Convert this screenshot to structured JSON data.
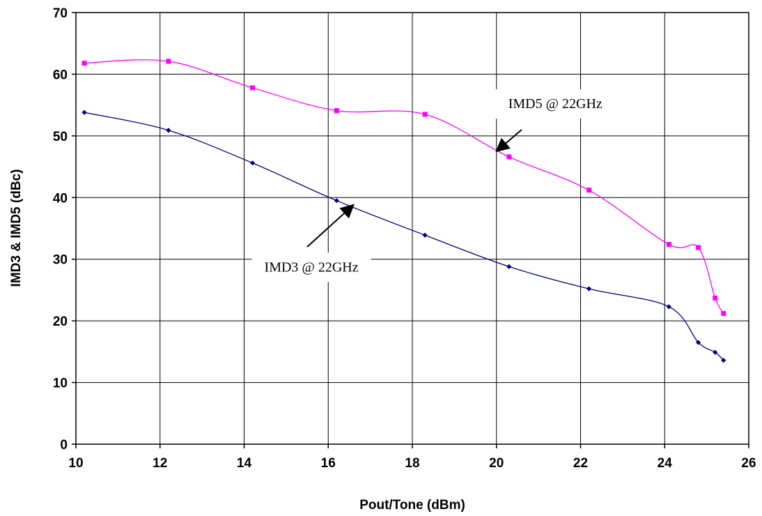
{
  "chart_data": {
    "type": "line",
    "xlabel": "Pout/Tone (dBm)",
    "ylabel": "IMD3 & IMD5 (dBc)",
    "xlim": [
      10,
      26
    ],
    "ylim": [
      0,
      70
    ],
    "x_ticks": [
      "10",
      "12",
      "14",
      "16",
      "18",
      "20",
      "22",
      "24",
      "26"
    ],
    "y_ticks": [
      "0",
      "10",
      "20",
      "30",
      "40",
      "50",
      "60",
      "70"
    ],
    "grid": true,
    "series": [
      {
        "key": "imd5",
        "color": "#ff00ff",
        "marker": "square",
        "points": [
          [
            10.2,
            61.8
          ],
          [
            12.2,
            62.1
          ],
          [
            14.2,
            57.8
          ],
          [
            16.2,
            54.1
          ],
          [
            18.3,
            53.5
          ],
          [
            20.3,
            46.6
          ],
          [
            22.2,
            41.2
          ],
          [
            24.1,
            32.4
          ],
          [
            24.8,
            31.9
          ],
          [
            25.2,
            23.7
          ],
          [
            25.4,
            21.2
          ]
        ]
      },
      {
        "key": "imd3",
        "color": "#000080",
        "marker": "diamond",
        "points": [
          [
            10.2,
            53.8
          ],
          [
            12.2,
            50.9
          ],
          [
            14.2,
            45.6
          ],
          [
            16.2,
            39.5
          ],
          [
            18.3,
            33.9
          ],
          [
            20.3,
            28.8
          ],
          [
            22.2,
            25.2
          ],
          [
            24.1,
            22.3
          ],
          [
            24.8,
            16.5
          ],
          [
            25.2,
            14.9
          ],
          [
            25.4,
            13.6
          ]
        ]
      }
    ],
    "annotations": [
      {
        "key": "imd5-label",
        "text": "IMD5 @ 22GHz",
        "label_x": 21.4,
        "label_y": 54.5,
        "arrow_from": [
          20.6,
          51.0
        ],
        "arrow_to": [
          20.0,
          47.5
        ]
      },
      {
        "key": "imd3-label",
        "text": "IMD3 @ 22GHz",
        "label_x": 15.6,
        "label_y": 28.0,
        "arrow_from": [
          15.5,
          32.0
        ],
        "arrow_to": [
          16.6,
          38.8
        ]
      }
    ]
  }
}
